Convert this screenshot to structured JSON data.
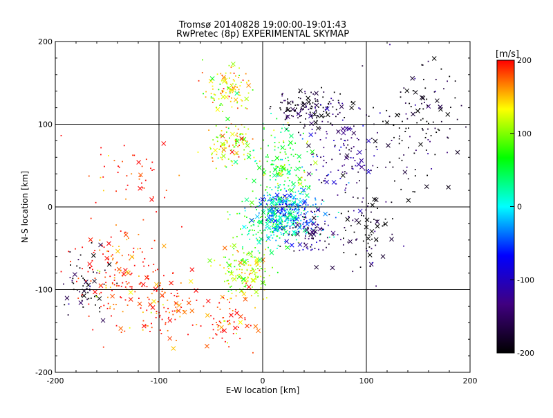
{
  "chart_data": {
    "type": "scatter",
    "title": "Tromsø 20140828 19:00:00-19:01:43",
    "subtitle": "RwPretec (8p) EXPERIMENTAL SKYMAP",
    "xlabel": "E-W location [km]",
    "ylabel": "N-S location [km]",
    "xlim": [
      -200,
      200
    ],
    "ylim": [
      -200,
      200
    ],
    "xticks": [
      "-200",
      "-100",
      "0",
      "100",
      "200"
    ],
    "yticks": [
      "-200",
      "-100",
      "0",
      "100",
      "200"
    ],
    "grid": true,
    "colorbar": {
      "unit": "[m/s]",
      "range": [
        -200,
        200
      ],
      "ticks": [
        "200",
        "100",
        "0",
        "-100",
        "-200"
      ],
      "colormap": [
        "#ff0000",
        "#ffff00",
        "#00ff00",
        "#00ffff",
        "#0000ff",
        "#400080",
        "#000000"
      ]
    },
    "marker_kinds": [
      "dot",
      "cross"
    ],
    "clusters": [
      {
        "center": [
          -170,
          -95
        ],
        "spread": [
          25,
          30
        ],
        "velocity": -190,
        "count": 60
      },
      {
        "center": [
          -140,
          -80
        ],
        "spread": [
          40,
          50
        ],
        "velocity": 195,
        "count": 170
      },
      {
        "center": [
          -95,
          -120
        ],
        "spread": [
          30,
          35
        ],
        "velocity": 190,
        "count": 90
      },
      {
        "center": [
          -40,
          -140
        ],
        "spread": [
          30,
          30
        ],
        "velocity": 185,
        "count": 70
      },
      {
        "center": [
          -15,
          -75
        ],
        "spread": [
          25,
          35
        ],
        "velocity": 110,
        "count": 160
      },
      {
        "center": [
          10,
          -20
        ],
        "spread": [
          30,
          30
        ],
        "velocity": 40,
        "count": 220
      },
      {
        "center": [
          25,
          -5
        ],
        "spread": [
          25,
          25
        ],
        "velocity": -30,
        "count": 260
      },
      {
        "center": [
          45,
          -30
        ],
        "spread": [
          20,
          25
        ],
        "velocity": -140,
        "count": 90
      },
      {
        "center": [
          20,
          50
        ],
        "spread": [
          30,
          40
        ],
        "velocity": 60,
        "count": 180
      },
      {
        "center": [
          -30,
          75
        ],
        "spread": [
          22,
          22
        ],
        "velocity": 120,
        "count": 110
      },
      {
        "center": [
          -35,
          140
        ],
        "spread": [
          20,
          30
        ],
        "velocity": 130,
        "count": 110
      },
      {
        "center": [
          45,
          120
        ],
        "spread": [
          30,
          20
        ],
        "velocity": -185,
        "count": 160
      },
      {
        "center": [
          80,
          60
        ],
        "spread": [
          30,
          45
        ],
        "velocity": -130,
        "count": 120
      },
      {
        "center": [
          150,
          100
        ],
        "spread": [
          40,
          70
        ],
        "velocity": -195,
        "count": 130
      },
      {
        "center": [
          100,
          -30
        ],
        "spread": [
          25,
          45
        ],
        "velocity": -185,
        "count": 80
      },
      {
        "center": [
          -120,
          40
        ],
        "spread": [
          40,
          40
        ],
        "velocity": 200,
        "count": 45
      }
    ]
  }
}
